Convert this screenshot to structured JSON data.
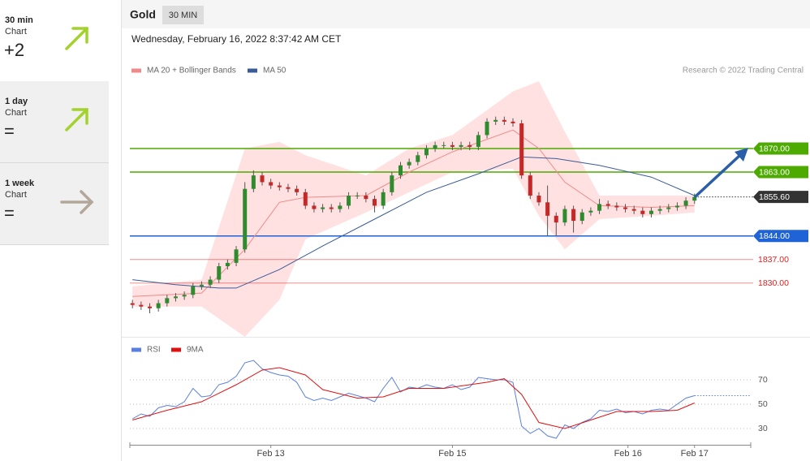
{
  "sidebar": [
    {
      "period": "30 min",
      "label": "Chart",
      "value": "+2"
    },
    {
      "period": "1 day",
      "label": "Chart",
      "value": "="
    },
    {
      "period": "1 week",
      "label": "Chart",
      "value": "="
    }
  ],
  "header": {
    "symbol": "Gold",
    "timeframe": "30 MIN",
    "timestamp": "Wednesday, February 16, 2022 8:37:42 AM CET",
    "credit": "Research © 2022 Trading Central"
  },
  "chart_data": [
    {
      "type": "candlestick",
      "xlim": [
        -0.3,
        71.5
      ],
      "ylim": [
        1814,
        1891
      ],
      "up_color": "#2e8b2e",
      "down_color": "#c62828",
      "open": [
        1824,
        1823.5,
        1823,
        1822.5,
        1824,
        1825.5,
        1826,
        1826.5,
        1829,
        1829.5,
        1831,
        1835,
        1836,
        1840,
        1858,
        1862,
        1860,
        1859,
        1858.5,
        1858,
        1857,
        1853,
        1852,
        1852.5,
        1852,
        1853,
        1856,
        1856,
        1855,
        1853,
        1857,
        1862,
        1865,
        1866,
        1868,
        1870,
        1871,
        1871,
        1870.5,
        1871,
        1870.5,
        1874,
        1878,
        1878.5,
        1878,
        1877.5,
        1862,
        1856,
        1854,
        1850,
        1848,
        1852,
        1848.5,
        1851,
        1851.5,
        1853.5,
        1853,
        1852.5,
        1852,
        1851.5,
        1850.5,
        1851.5,
        1852,
        1852.5,
        1853,
        1854.5
      ],
      "high": [
        1825,
        1824.5,
        1824,
        1825,
        1826.5,
        1827,
        1827.5,
        1830,
        1830.5,
        1832,
        1836,
        1837,
        1841,
        1860,
        1863.5,
        1863,
        1861,
        1860,
        1859.5,
        1859,
        1858,
        1854,
        1853.5,
        1853.5,
        1854,
        1857,
        1857,
        1857,
        1856,
        1858,
        1863,
        1866,
        1867,
        1869,
        1871,
        1872,
        1872,
        1872,
        1872,
        1872,
        1875,
        1879,
        1879.5,
        1879.5,
        1879,
        1878.5,
        1863,
        1857,
        1859,
        1851,
        1853,
        1853,
        1852,
        1852.5,
        1855,
        1854.5,
        1854,
        1853.5,
        1853,
        1852.5,
        1852.5,
        1853,
        1853.5,
        1854,
        1855.5,
        1856.6
      ],
      "low": [
        1822.5,
        1822,
        1821,
        1821.5,
        1823,
        1824.5,
        1825,
        1825.5,
        1828,
        1828.5,
        1830,
        1834,
        1835,
        1839,
        1857,
        1859,
        1858,
        1857.5,
        1857,
        1856,
        1852,
        1851,
        1851,
        1851,
        1851,
        1852,
        1855,
        1854,
        1851,
        1852,
        1856,
        1861,
        1864,
        1865,
        1867,
        1869,
        1870,
        1869.5,
        1869.5,
        1869.5,
        1869.5,
        1873,
        1877,
        1877,
        1876.5,
        1861,
        1855,
        1853,
        1844,
        1844,
        1847,
        1845,
        1847.5,
        1850,
        1850.5,
        1852,
        1851.5,
        1851,
        1850.5,
        1849.5,
        1849.5,
        1850.5,
        1851,
        1851.5,
        1852,
        1853.5
      ],
      "close": [
        1823.5,
        1823,
        1822.5,
        1824,
        1825.5,
        1826,
        1826.5,
        1829,
        1829.5,
        1831,
        1835,
        1836,
        1840,
        1858,
        1862,
        1860,
        1859,
        1858.5,
        1858,
        1857,
        1853,
        1852,
        1852.5,
        1852,
        1853,
        1856,
        1856,
        1855,
        1853,
        1857,
        1862,
        1865,
        1866,
        1868,
        1870,
        1871,
        1871,
        1870.5,
        1871,
        1870.5,
        1874,
        1878,
        1878.5,
        1878,
        1877.5,
        1862,
        1856,
        1854,
        1850,
        1848,
        1852,
        1848.5,
        1851,
        1851.5,
        1853.5,
        1853,
        1852.5,
        1852,
        1851.5,
        1850.5,
        1851.5,
        1852,
        1852.5,
        1853,
        1854.5,
        1855.6
      ],
      "series": [
        {
          "name": "MA 20 + Bollinger Bands",
          "color": "#f08a8a",
          "band_color": "#ffe1e1",
          "x": [
            0,
            8,
            13,
            17,
            20,
            27,
            32,
            37,
            44,
            47,
            50,
            54,
            60,
            65
          ],
          "values": [
            1826,
            1827,
            1840,
            1854,
            1855.5,
            1856,
            1863,
            1869,
            1875.5,
            1870,
            1860,
            1853,
            1852.5,
            1853
          ],
          "upper": [
            1829,
            1831,
            1870,
            1872,
            1868,
            1862,
            1870,
            1874,
            1887,
            1890,
            1875,
            1856,
            1856,
            1856
          ],
          "lower": [
            1823,
            1823,
            1814,
            1825,
            1843,
            1851,
            1857,
            1863,
            1864,
            1850,
            1840,
            1849,
            1850,
            1851
          ]
        },
        {
          "name": "MA 50",
          "color": "#3a5a9a",
          "x": [
            0,
            5,
            10,
            12,
            17,
            22,
            28,
            34,
            40,
            45,
            49,
            54,
            60,
            65
          ],
          "values": [
            1831,
            1829.5,
            1828.5,
            1828.5,
            1834,
            1841,
            1849,
            1857,
            1862.5,
            1867.5,
            1867,
            1865,
            1861.5,
            1856
          ]
        }
      ],
      "levels": [
        {
          "value": 1870,
          "label": "1870.00",
          "color": "#4caa00",
          "boxed": true
        },
        {
          "value": 1863,
          "label": "1863.00",
          "color": "#4caa00",
          "boxed": true
        },
        {
          "value": 1855.6,
          "label": "1855.60",
          "color": "#333333",
          "boxed": true,
          "dotted": true
        },
        {
          "value": 1844,
          "label": "1844.00",
          "color": "#1f63d6",
          "boxed": true
        },
        {
          "value": 1837,
          "label": "1837.00",
          "color": "#e02020",
          "boxed": false
        },
        {
          "value": 1830,
          "label": "1830.00",
          "color": "#e02020",
          "boxed": false
        }
      ]
    },
    {
      "type": "line",
      "xlim": [
        -0.3,
        71.5
      ],
      "ylim": [
        16,
        89
      ],
      "yticks": [
        30,
        50,
        70
      ],
      "xticks": [
        {
          "value": 16,
          "label": "Feb 13"
        },
        {
          "value": 37,
          "label": "Feb 15"
        },
        {
          "value": 57.3,
          "label": "Feb 16"
        },
        {
          "value": 65,
          "label": "Feb 17"
        }
      ],
      "series": [
        {
          "name": "RSI",
          "color": "#5b7fe0",
          "values": [
            38,
            42,
            40,
            47,
            49,
            48,
            52,
            63,
            56,
            57,
            66,
            68,
            73,
            84,
            86,
            79,
            76,
            74,
            73,
            68,
            56,
            53,
            55,
            53,
            56,
            59,
            57,
            55,
            52,
            63,
            72,
            60,
            64,
            63,
            66,
            64,
            63,
            66,
            62,
            64,
            72,
            71,
            70,
            70,
            68,
            32,
            26,
            30,
            24,
            22,
            33,
            30,
            35,
            38,
            45,
            44,
            46,
            43,
            44,
            42,
            45,
            46,
            45,
            50,
            55,
            57
          ]
        },
        {
          "name": "9MA",
          "color": "#e01010",
          "x": [
            0,
            4,
            8,
            12,
            15,
            17,
            20,
            22,
            26,
            29,
            32,
            36,
            41,
            43,
            45,
            47,
            50,
            53,
            56,
            60,
            63,
            65
          ],
          "values": [
            37,
            45,
            52,
            66,
            78,
            80,
            74,
            62,
            55,
            56,
            63,
            63,
            68,
            71,
            58,
            35,
            30,
            37,
            44,
            44,
            45,
            51
          ]
        }
      ]
    }
  ]
}
